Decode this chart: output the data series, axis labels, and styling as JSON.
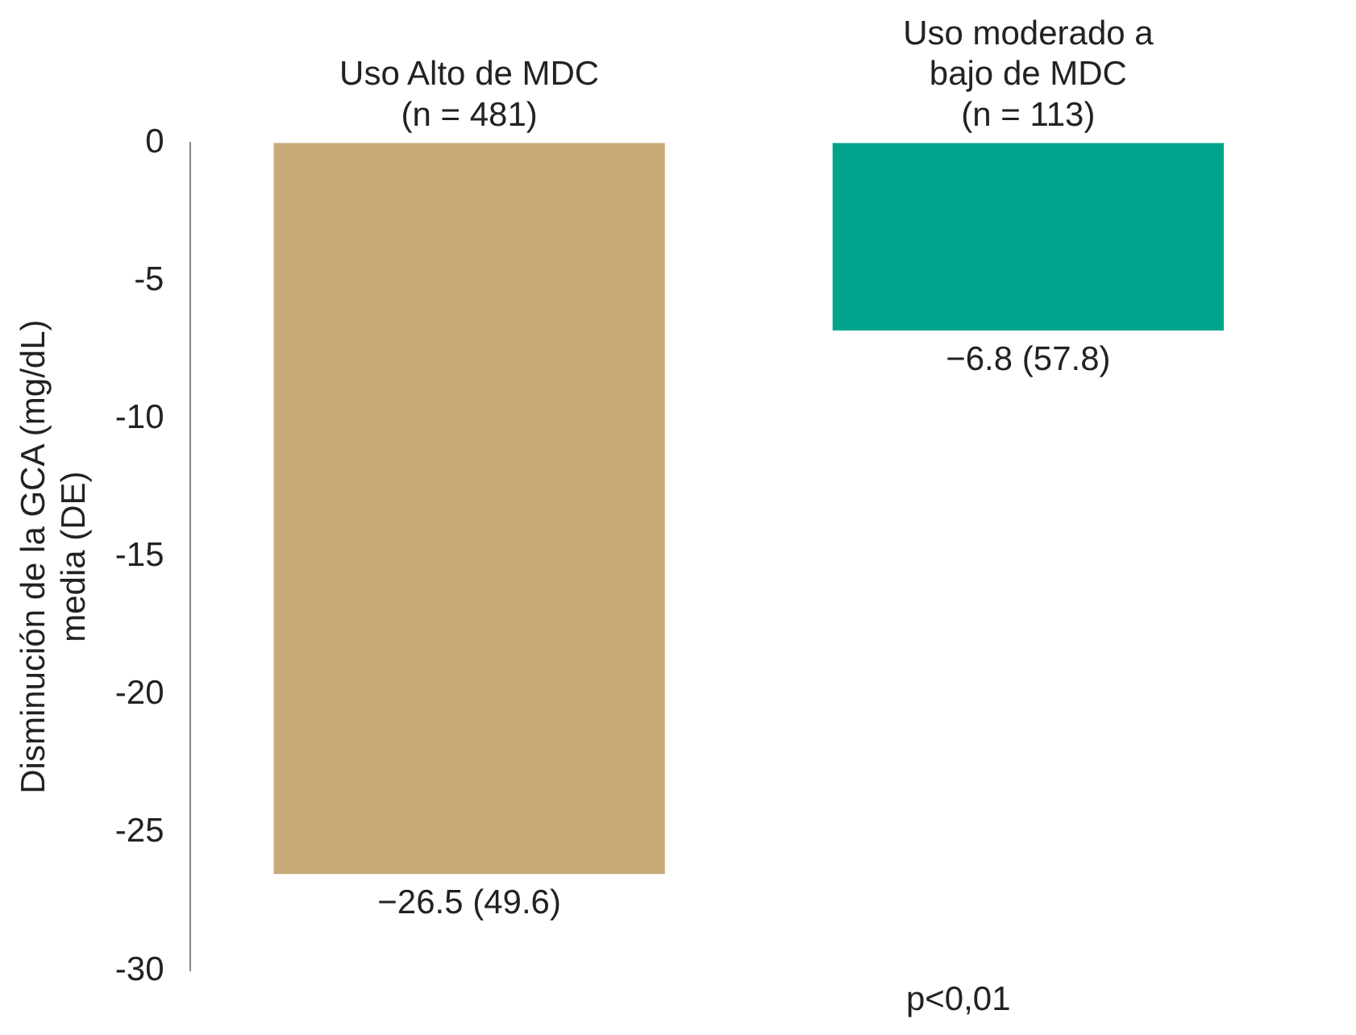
{
  "chart_data": {
    "type": "bar",
    "ylabel": "Disminución de la GCA (mg/dL)\nmedia (DE)",
    "categories": [
      "Uso Alto de MDC\n(n = 481)",
      "Uso moderado a\nbajo de MDC\n(n = 113)"
    ],
    "values": [
      -26.5,
      -6.8
    ],
    "colors": [
      "#c8aa78",
      "#00a38c"
    ],
    "value_labels": [
      "−26.5 (49.6)",
      "−6.8 (57.8)"
    ],
    "ylim": [
      -30,
      0
    ],
    "yticks": [
      0,
      -5,
      -10,
      -15,
      -20,
      -25,
      -30
    ],
    "grid": false,
    "legend": false,
    "annotations": [
      "p<0,01"
    ]
  }
}
